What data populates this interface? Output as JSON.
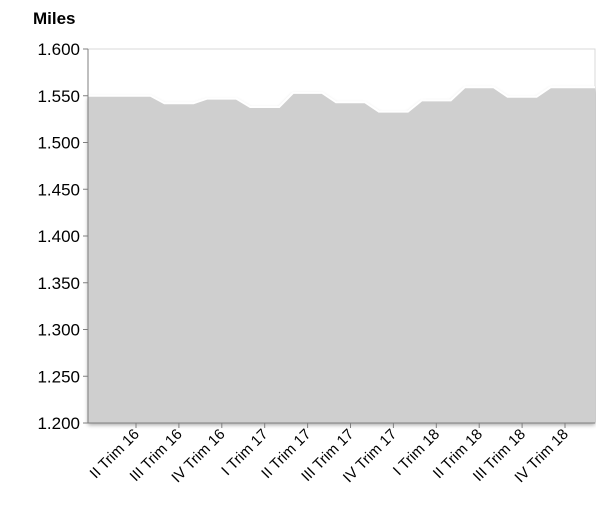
{
  "chart_data": {
    "type": "area",
    "ylabel": "Miles",
    "xlabel": "",
    "title": "",
    "ylim": [
      1.2,
      1.6
    ],
    "yticks": [
      "1.200",
      "1.250",
      "1.300",
      "1.350",
      "1.400",
      "1.450",
      "1.500",
      "1.550",
      "1.600"
    ],
    "categories": [
      "II Trim 16",
      "III Trim 16",
      "IV Trim 16",
      "I Trim 17",
      "II Trim 17",
      "III Trim 17",
      "IV Trim 17",
      "I Trim 18",
      "II Trim 18",
      "III Trim 18",
      "IV Trim 18"
    ],
    "values": [
      1.55,
      1.542,
      1.547,
      1.538,
      1.553,
      1.543,
      1.533,
      1.545,
      1.559,
      1.549,
      1.559
    ],
    "grid": false,
    "legend": "none",
    "colors": {
      "fill": "#cfcfcf",
      "axis": "#7f7f7f",
      "edge": "#ffffff"
    }
  }
}
